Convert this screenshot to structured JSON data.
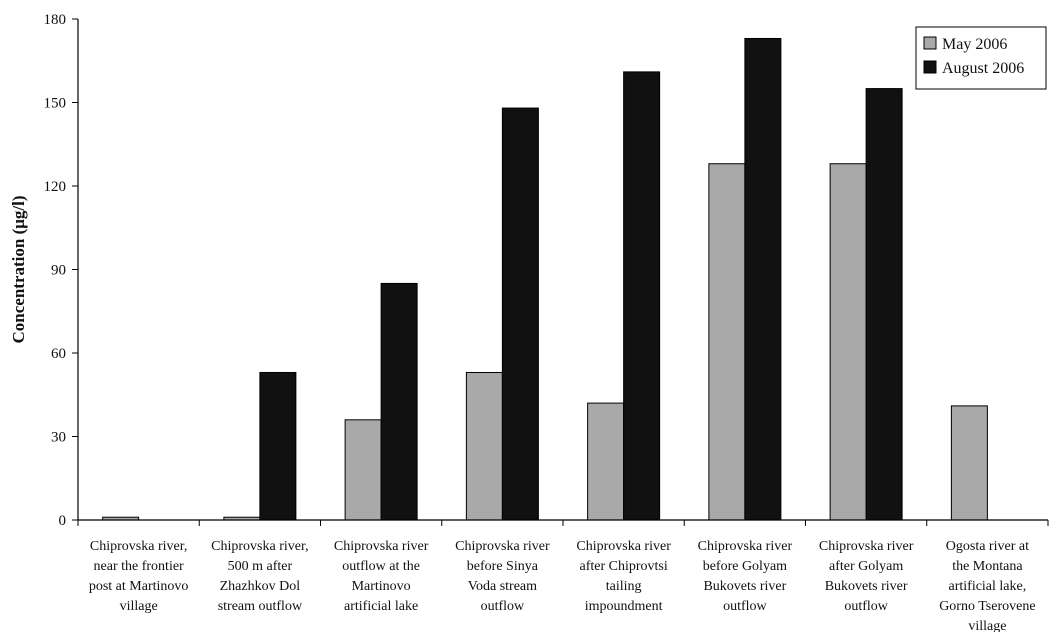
{
  "chart_data": {
    "type": "bar",
    "ylabel": "Concentration (μg/l)",
    "ylim": [
      0,
      180
    ],
    "yticks": [
      0,
      30,
      60,
      90,
      120,
      150,
      180
    ],
    "grid": false,
    "legend_position": "top-right",
    "categories": [
      [
        "Chiprovska river,",
        "near the frontier",
        "post at Martinovo",
        "village"
      ],
      [
        "Chiprovska river,",
        "500 m after",
        "Zhazhkov Dol",
        "stream outflow"
      ],
      [
        "Chiprovska river",
        "outflow at the",
        "Martinovo",
        "artificial lake"
      ],
      [
        "Chiprovska river",
        "before Sinya",
        "Voda stream",
        "outflow"
      ],
      [
        "Chiprovska river",
        "after Chiprovtsi",
        "tailing",
        "impoundment"
      ],
      [
        "Chiprovska river",
        "before Golyam",
        "Bukovets river",
        "outflow"
      ],
      [
        "Chiprovska river",
        "after Golyam",
        "Bukovets river",
        "outflow"
      ],
      [
        "Ogosta river at",
        "the Montana",
        "artificial lake,",
        "Gorno Tserovene",
        "village"
      ]
    ],
    "series": [
      {
        "name": "May 2006",
        "color": "#a9a9a9",
        "values": [
          1,
          1,
          36,
          53,
          42,
          128,
          128,
          41
        ]
      },
      {
        "name": "August 2006",
        "color": "#111111",
        "values": [
          0,
          53,
          85,
          148,
          161,
          173,
          155,
          0
        ]
      }
    ]
  }
}
